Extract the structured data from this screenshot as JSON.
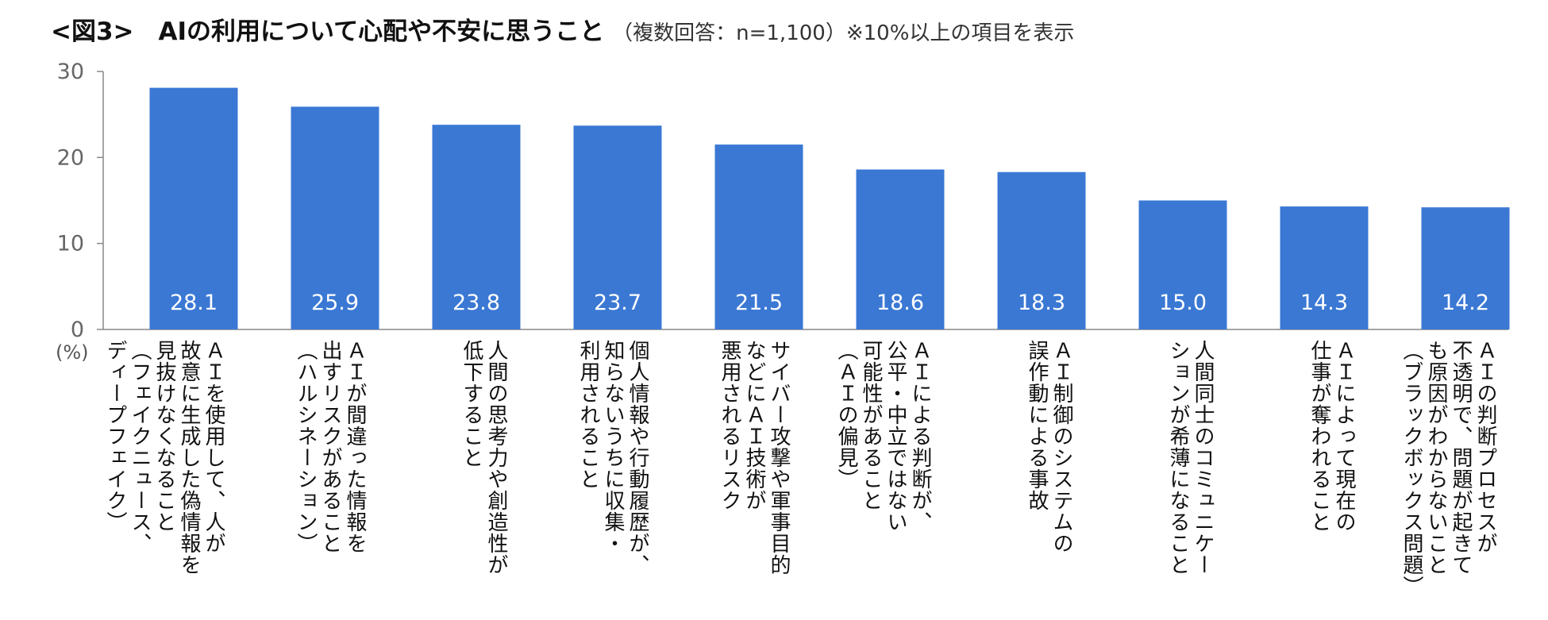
{
  "title": {
    "main": "<図3>　AIの利用について心配や不安に思うこと",
    "sub": "（複数回答：n=1,100）※10%以上の項目を表示"
  },
  "unit_label": "(%)",
  "colors": {
    "bar": "#3a78d4",
    "axis": "#888888",
    "value_label": "#ffffff"
  },
  "chart_data": {
    "type": "bar",
    "ylim": [
      0,
      30
    ],
    "yticks": [
      0,
      10,
      20,
      30
    ],
    "grid": false,
    "categories": [
      "ＡＩを使用して、人が\n故意に生成した偽情報を\n見抜けなくなること\n（フェイクニュース、\nディープフェイク）",
      "ＡＩが間違った情報を\n出すリスクがあること\n（ハルシネーション）",
      "人間の思考力や創造性が\n低下すること",
      "個人情報や行動履歴が、\n知らないうちに収集・\n利用されること",
      "サイバー攻撃や軍事目的\nなどにＡＩ技術が\n悪用されるリスク",
      "ＡＩによる判断が、\n公平・中立ではない\n可能性があること\n（ＡＩの偏見）",
      "ＡＩ制御のシステムの\n誤作動による事故",
      "人間同士のコミュニケー\nションが希薄になること",
      "ＡＩによって現在の\n仕事が奪われること",
      "ＡＩの判断プロセスが\n不透明で、問題が起きて\nも原因がわからないこと\n（ブラックボックス問題）"
    ],
    "values": [
      28.1,
      25.9,
      23.8,
      23.7,
      21.5,
      18.6,
      18.3,
      15.0,
      14.3,
      14.2
    ],
    "value_labels": [
      "28.1",
      "25.9",
      "23.8",
      "23.7",
      "21.5",
      "18.6",
      "18.3",
      "15.0",
      "14.3",
      "14.2"
    ]
  }
}
